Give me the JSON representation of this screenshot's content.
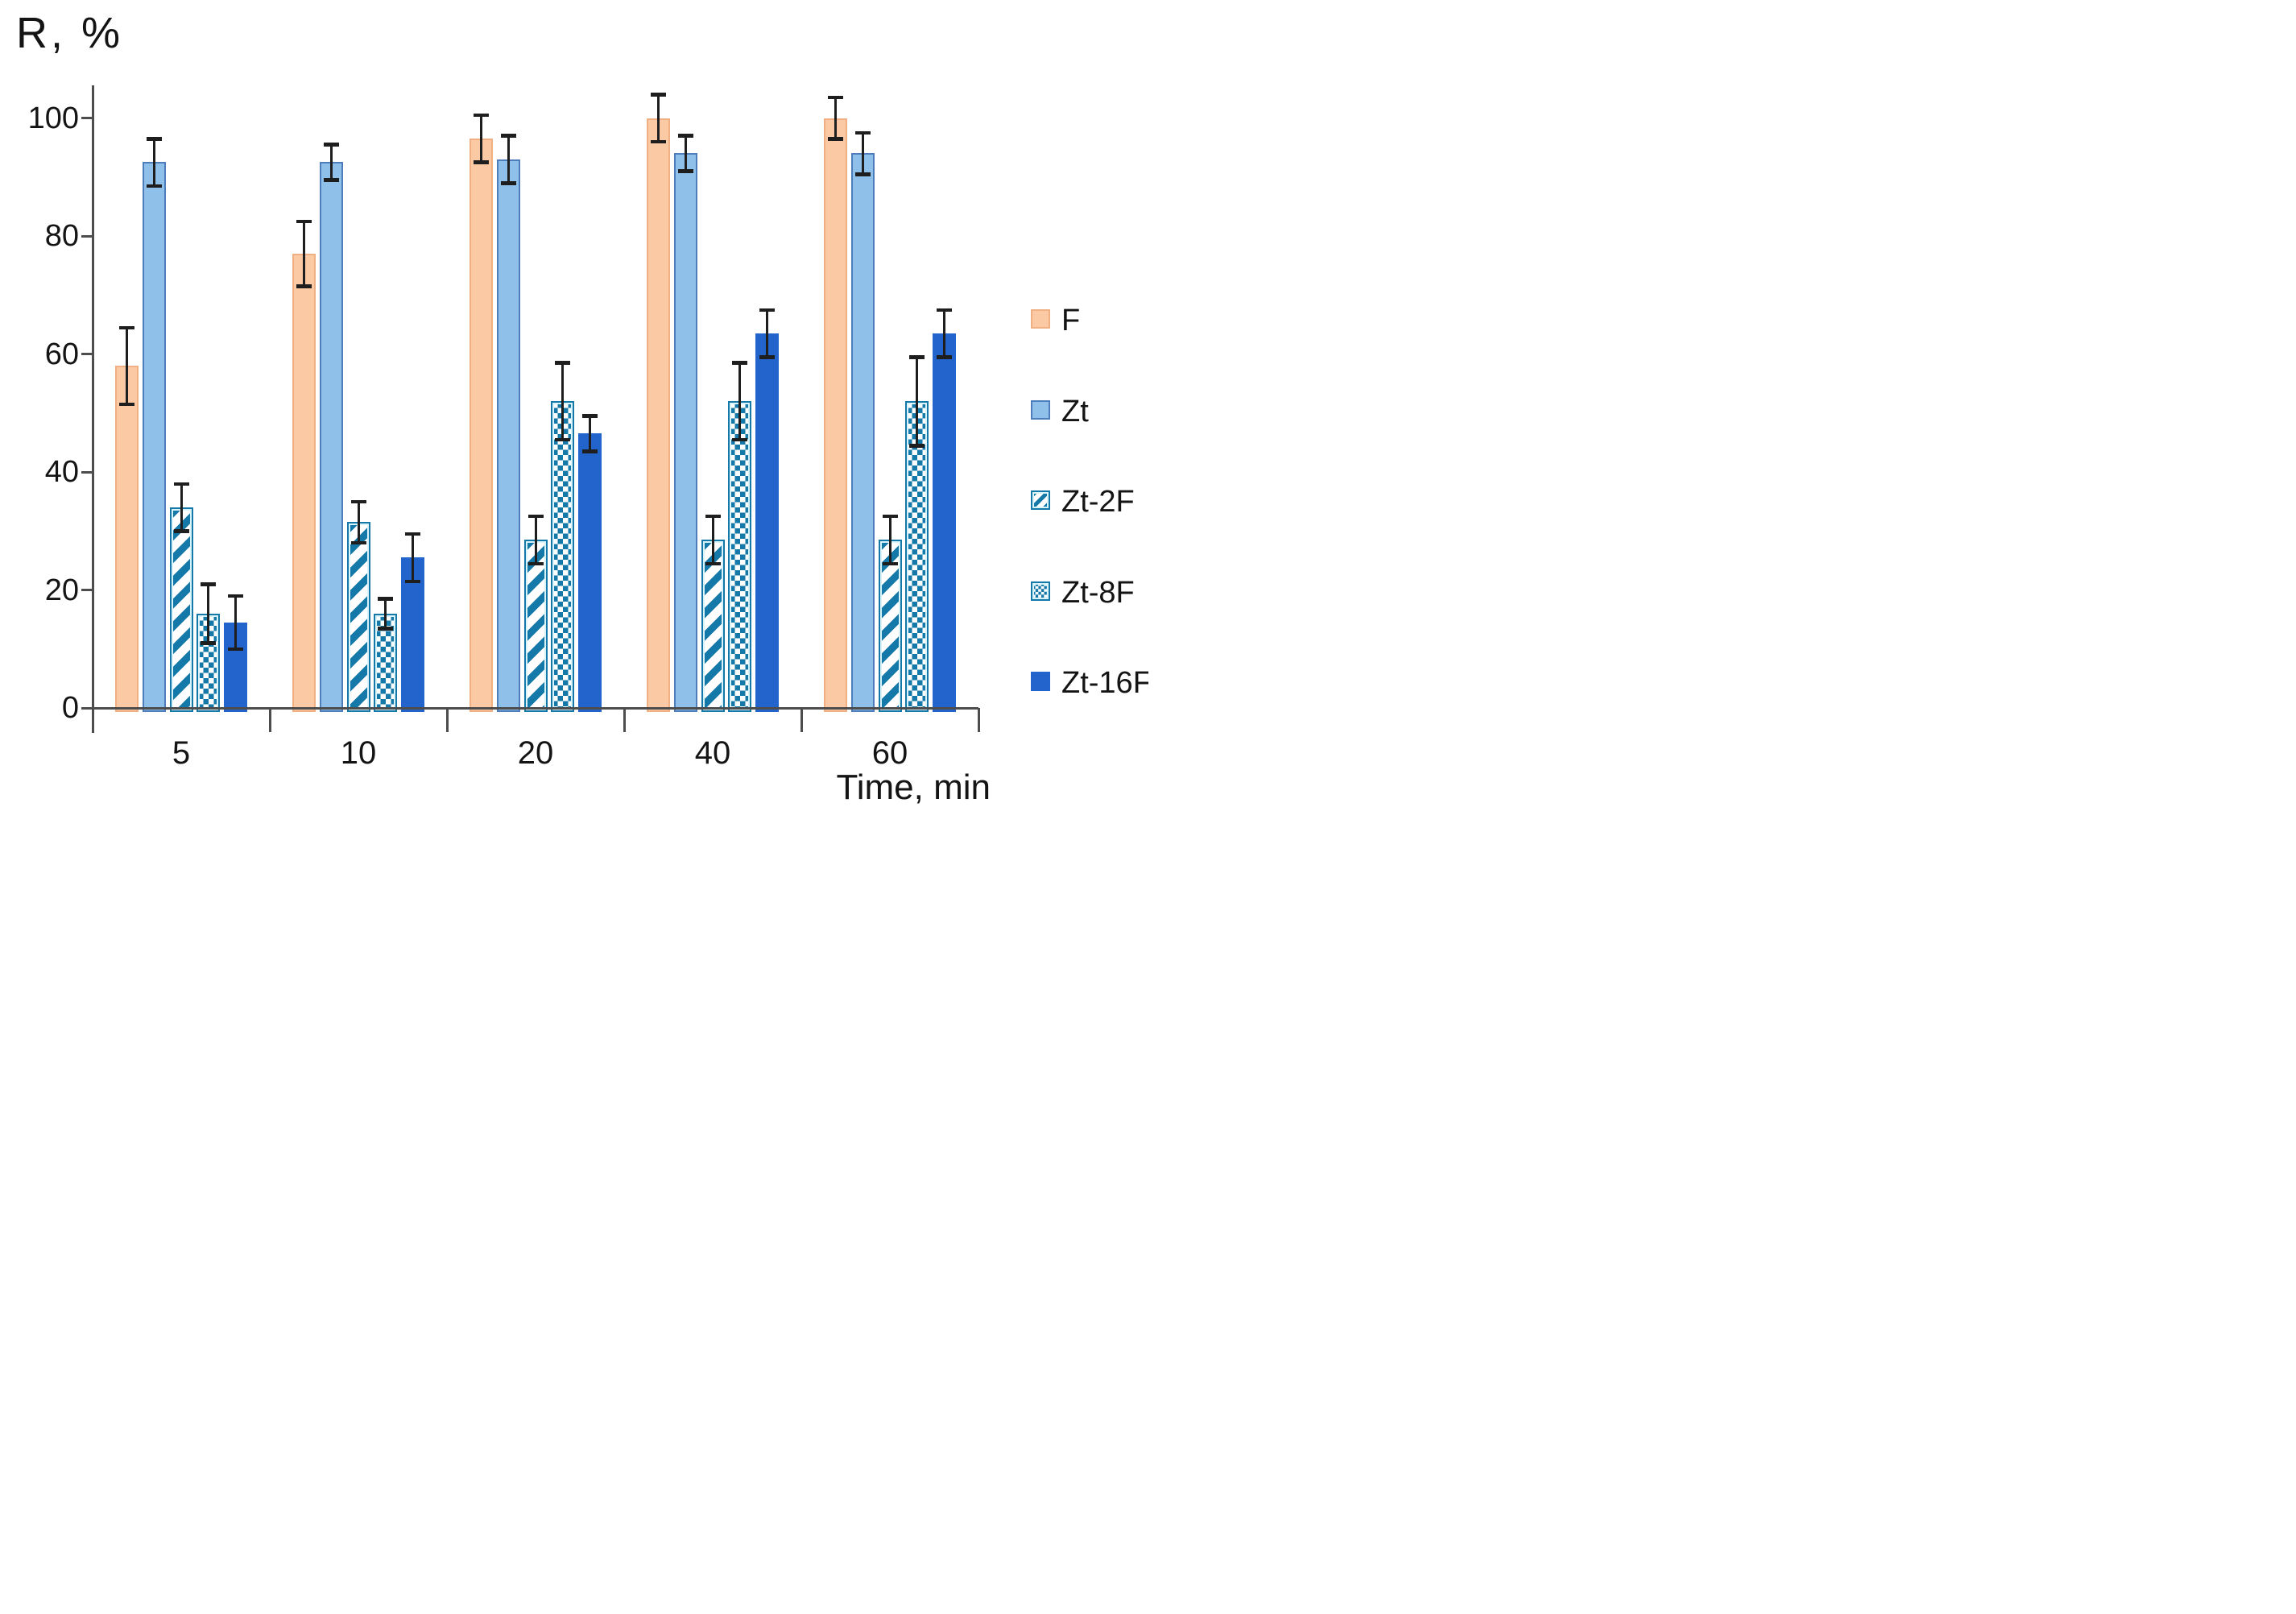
{
  "chart_data": {
    "type": "bar",
    "title": "",
    "ylabel": "R, %",
    "xlabel": "Time, min",
    "categories": [
      "5",
      "10",
      "20",
      "40",
      "60"
    ],
    "ylim": [
      0,
      100
    ],
    "yticks": [
      0,
      20,
      40,
      60,
      80,
      100
    ],
    "grid": false,
    "legend_position": "right",
    "error_bars": true,
    "error_bar_color": "#1e1e1e",
    "axis_color": "#4d4d4d",
    "text_color": "#141414",
    "series": [
      {
        "name": "F",
        "pattern": "solid",
        "fill": "#fbcaa4",
        "border": "#f0b083",
        "values": [
          58,
          77,
          96.5,
          100,
          100
        ],
        "errors": [
          6.5,
          5.5,
          4,
          4,
          3.5
        ]
      },
      {
        "name": "Zt",
        "pattern": "solid",
        "fill": "#8fc0e9",
        "border": "#4d7ebb",
        "values": [
          92.5,
          92.5,
          93,
          94,
          94
        ],
        "errors": [
          4,
          3,
          4,
          3,
          3.5
        ]
      },
      {
        "name": "Zt-2F",
        "pattern": "diagonal-stripes",
        "fill": "#ffffff",
        "border": "#1478a8",
        "pattern_color": "#1478a8",
        "values": [
          34,
          31.5,
          28.5,
          28.5,
          28.5
        ],
        "errors": [
          4,
          3.5,
          4,
          4,
          4
        ]
      },
      {
        "name": "Zt-8F",
        "pattern": "square-dots",
        "fill": "#ffffff",
        "border": "#1478a8",
        "pattern_color": "#1478a8",
        "values": [
          16,
          16,
          52,
          52,
          52
        ],
        "errors": [
          5,
          2.5,
          6.5,
          6.5,
          7.5
        ]
      },
      {
        "name": "Zt-16F",
        "pattern": "solid",
        "fill": "#2264cb",
        "border": "#2264cb",
        "values": [
          14.5,
          25.5,
          46.5,
          63.5,
          63.5
        ],
        "errors": [
          4.5,
          4,
          3,
          4,
          4
        ]
      }
    ]
  }
}
